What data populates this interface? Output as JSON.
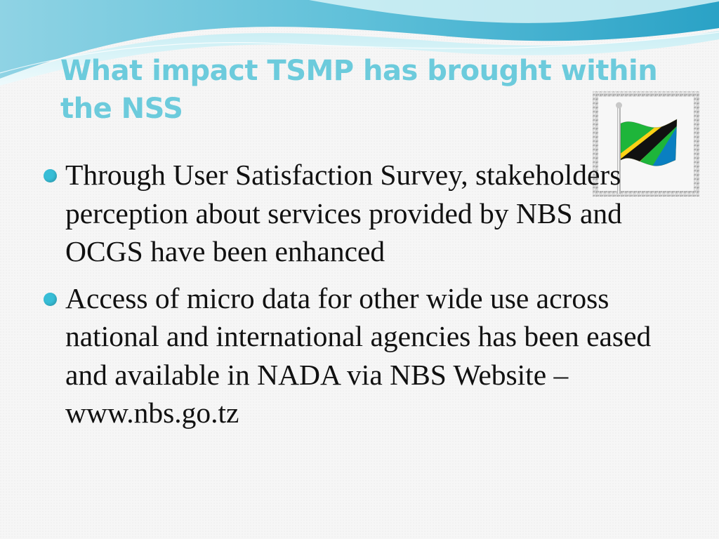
{
  "slide": {
    "title": "What impact TSMP has brought within the NSS",
    "bullets": [
      {
        "text": "Through User Satisfaction Survey, stakeholders perception about services provided by  NBS and OCGS have been enhanced"
      },
      {
        "text": "Access of micro data for other wide use across national and international agencies has been eased and available in NADA via NBS Website –www.nbs.go.tz"
      }
    ],
    "image": {
      "icon": "tanzania-flag-icon"
    }
  },
  "colors": {
    "title": "#6ccbdc",
    "bullet": "#37bdd6",
    "text": "#111111",
    "wave_dark": "#2aa8c8",
    "wave_light": "#9fe0ea"
  }
}
